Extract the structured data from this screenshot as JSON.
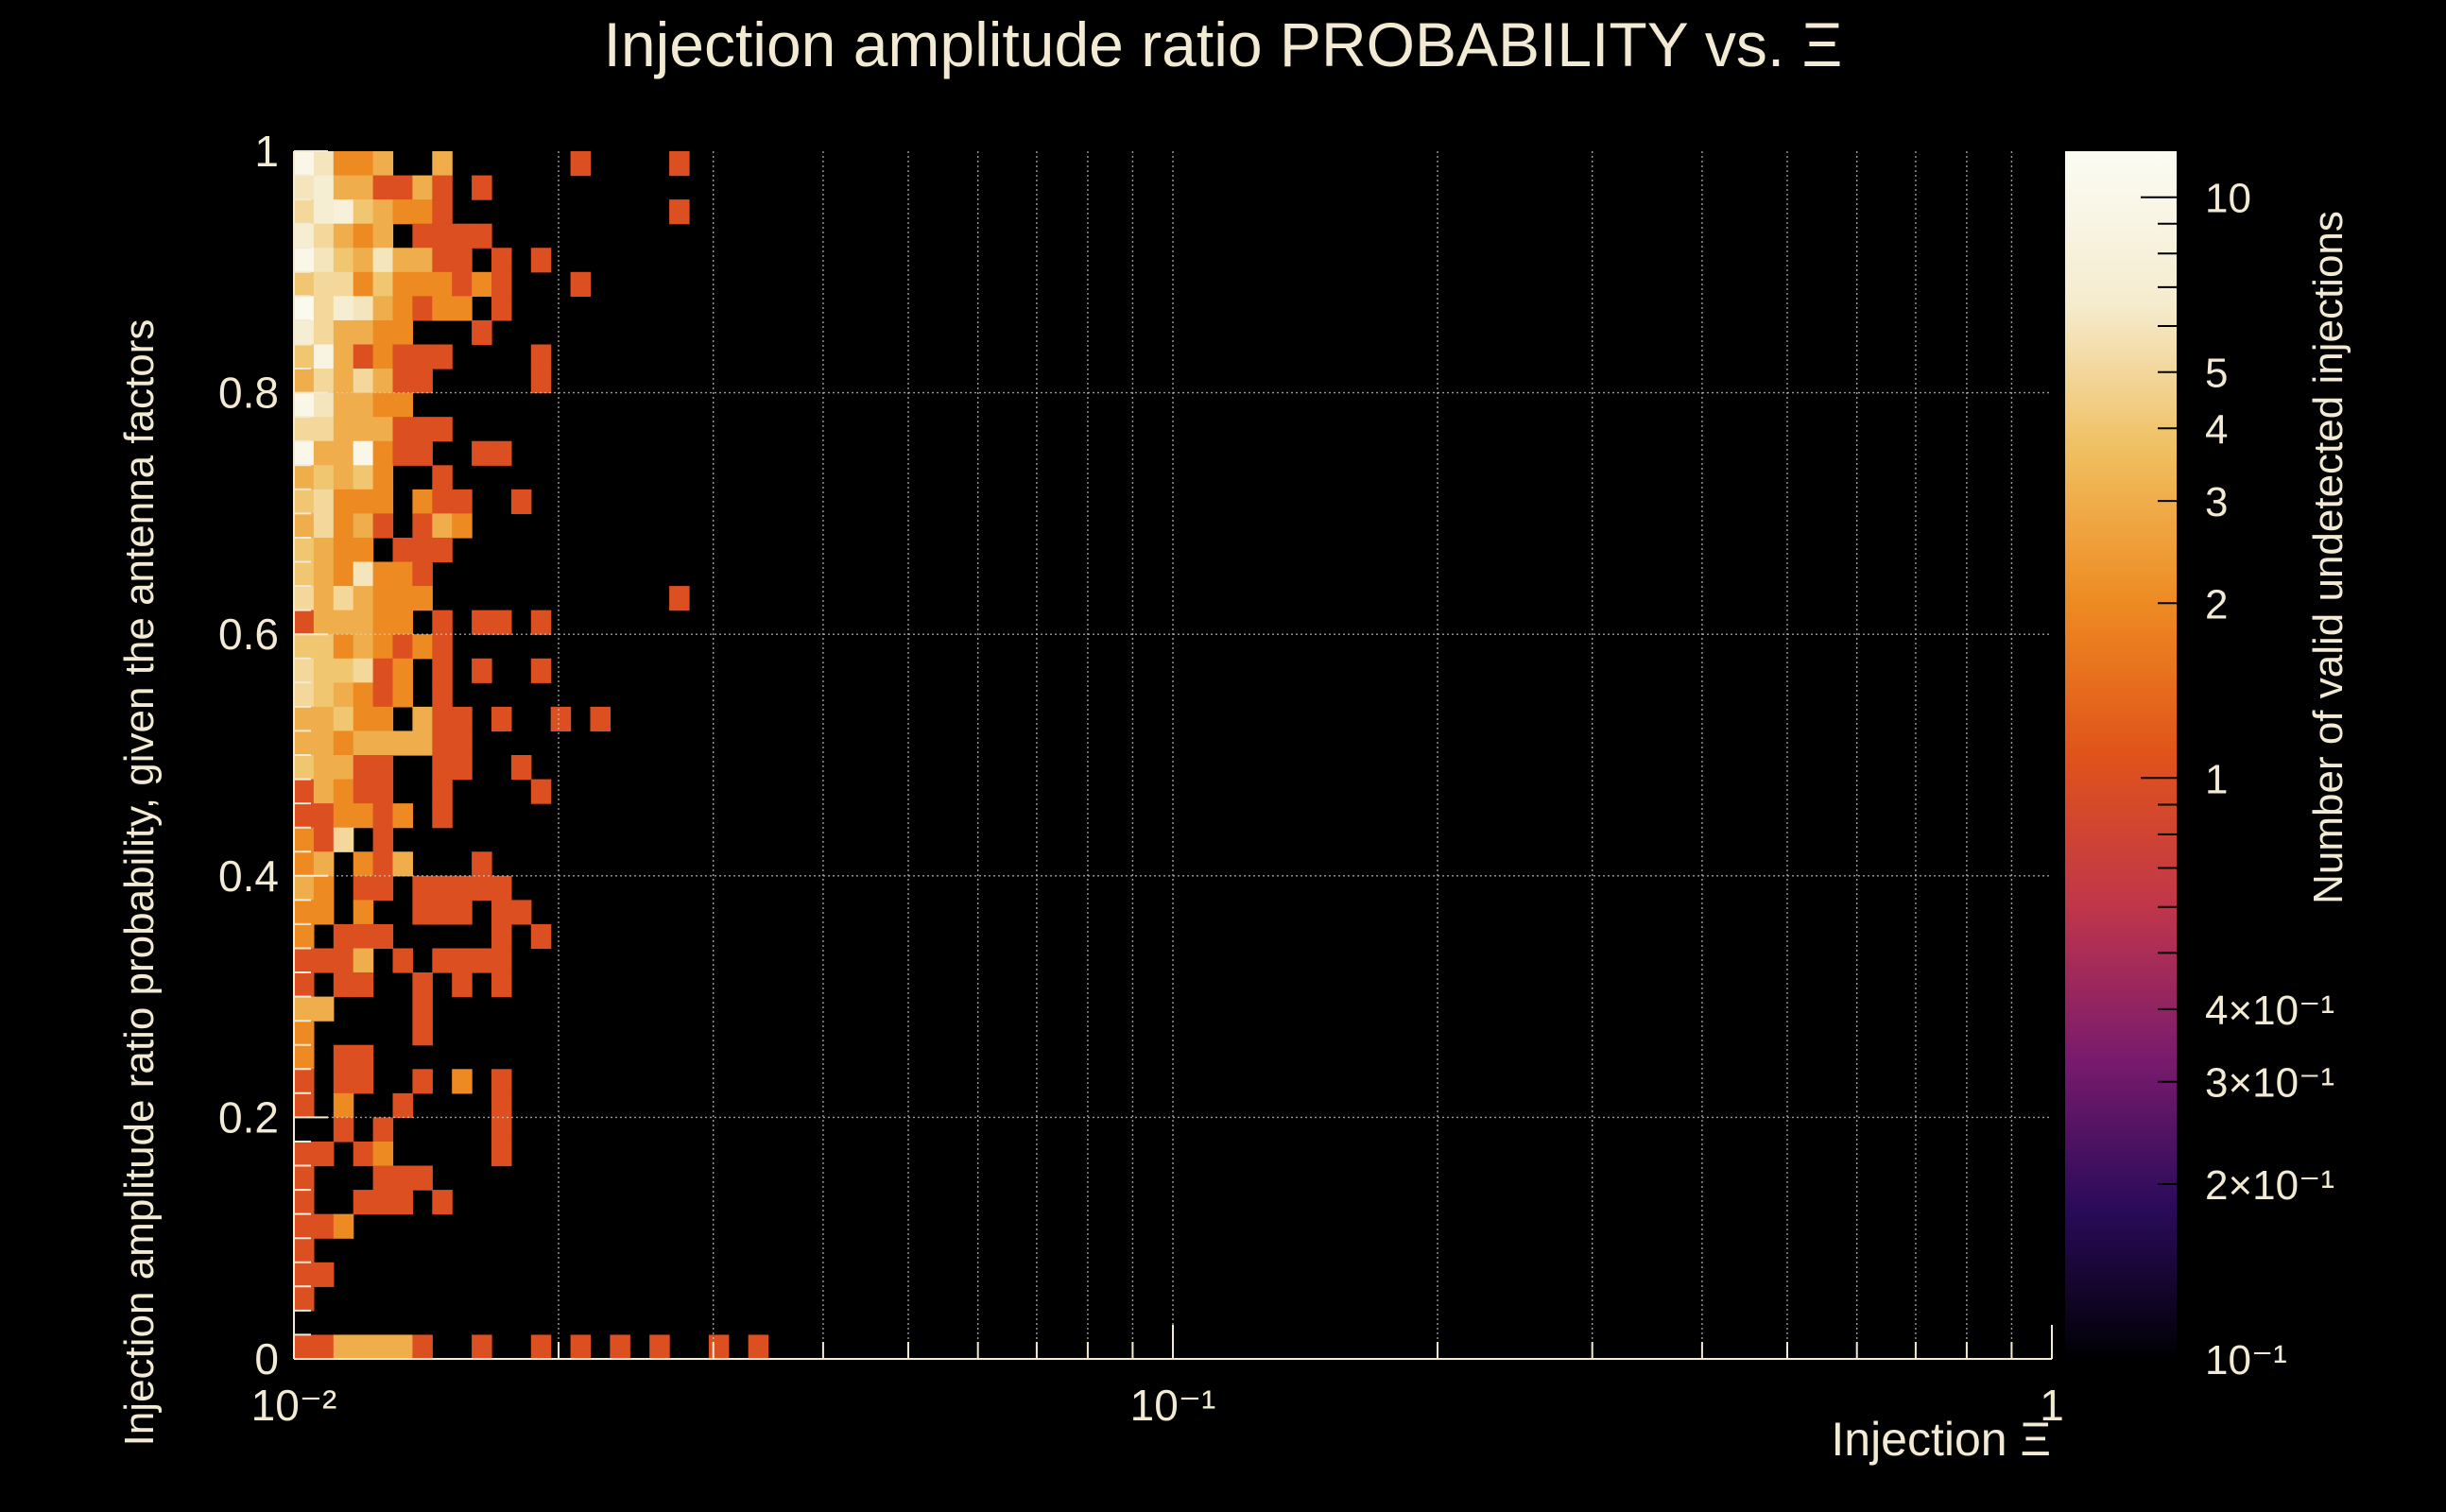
{
  "chart_data": {
    "type": "heatmap",
    "title": "Injection amplitude ratio PROBABILITY vs.  Ξ",
    "xlabel": "Injection Ξ",
    "ylabel": "Injection amplitude ratio probability, given the antenna factors",
    "zlabel": "Number of valid undetected injections",
    "x_scale": "log",
    "xlim": [
      0.01,
      1
    ],
    "ylim": [
      0,
      1
    ],
    "zlim": [
      0.1,
      12
    ],
    "z_scale": "log",
    "x_bins": 89,
    "y_bins": 50,
    "grid": true,
    "xticks": [
      "10⁻²",
      "10⁻¹",
      "1"
    ],
    "yticks": [
      "0",
      "0.2",
      "0.4",
      "0.6",
      "0.8",
      "1"
    ],
    "zticks": [
      "10",
      "5",
      "4",
      "3",
      "2",
      "1",
      "4×10⁻¹",
      "3×10⁻¹",
      "2×10⁻¹",
      "10⁻¹"
    ],
    "ztick_values": [
      10,
      5,
      4,
      3,
      2,
      1,
      0.4,
      0.3,
      0.2,
      0.1
    ],
    "colors": {
      "background": "#000000",
      "text": "#f2ead2",
      "grid": "#cfcfcf",
      "palette": [
        "#000004",
        "#2a0b5a",
        "#7a1b6d",
        "#c0364a",
        "#e0531a",
        "#ee8a22",
        "#f0be5e",
        "#f5eccf",
        "#fcfcf4"
      ]
    },
    "cells": [
      [
        0,
        49,
        10
      ],
      [
        1,
        49,
        6
      ],
      [
        2,
        49,
        2
      ],
      [
        3,
        49,
        2
      ],
      [
        4,
        49,
        3
      ],
      [
        7,
        49,
        3
      ],
      [
        14,
        49,
        1
      ],
      [
        19,
        49,
        1
      ],
      [
        0,
        48,
        6
      ],
      [
        1,
        48,
        7
      ],
      [
        2,
        48,
        3
      ],
      [
        3,
        48,
        3
      ],
      [
        4,
        48,
        1
      ],
      [
        5,
        48,
        1
      ],
      [
        6,
        48,
        3
      ],
      [
        7,
        48,
        1
      ],
      [
        9,
        48,
        1
      ],
      [
        0,
        47,
        5
      ],
      [
        1,
        47,
        7
      ],
      [
        2,
        47,
        8
      ],
      [
        3,
        47,
        4
      ],
      [
        4,
        47,
        3
      ],
      [
        5,
        47,
        2
      ],
      [
        6,
        47,
        2
      ],
      [
        7,
        47,
        1
      ],
      [
        19,
        47,
        1
      ],
      [
        0,
        46,
        7
      ],
      [
        1,
        46,
        5
      ],
      [
        2,
        46,
        3
      ],
      [
        3,
        46,
        2
      ],
      [
        4,
        46,
        3
      ],
      [
        6,
        46,
        1
      ],
      [
        7,
        46,
        1
      ],
      [
        8,
        46,
        1
      ],
      [
        9,
        46,
        1
      ],
      [
        0,
        45,
        10
      ],
      [
        1,
        45,
        6
      ],
      [
        2,
        45,
        4
      ],
      [
        3,
        45,
        3
      ],
      [
        4,
        45,
        6
      ],
      [
        5,
        45,
        3
      ],
      [
        6,
        45,
        3
      ],
      [
        7,
        45,
        1
      ],
      [
        8,
        45,
        1
      ],
      [
        10,
        45,
        1
      ],
      [
        12,
        45,
        1
      ],
      [
        0,
        44,
        4
      ],
      [
        1,
        44,
        5
      ],
      [
        2,
        44,
        5
      ],
      [
        3,
        44,
        2
      ],
      [
        4,
        44,
        4
      ],
      [
        5,
        44,
        2
      ],
      [
        6,
        44,
        2
      ],
      [
        7,
        44,
        2
      ],
      [
        8,
        44,
        1
      ],
      [
        9,
        44,
        2
      ],
      [
        10,
        44,
        1
      ],
      [
        14,
        44,
        1
      ],
      [
        0,
        43,
        11
      ],
      [
        1,
        43,
        5
      ],
      [
        2,
        43,
        7
      ],
      [
        3,
        43,
        6
      ],
      [
        4,
        43,
        3
      ],
      [
        5,
        43,
        2
      ],
      [
        6,
        43,
        1
      ],
      [
        7,
        43,
        2
      ],
      [
        8,
        43,
        2
      ],
      [
        10,
        43,
        1
      ],
      [
        0,
        42,
        7
      ],
      [
        1,
        42,
        5
      ],
      [
        2,
        42,
        3
      ],
      [
        3,
        42,
        3
      ],
      [
        4,
        42,
        2
      ],
      [
        5,
        42,
        2
      ],
      [
        9,
        42,
        1
      ],
      [
        0,
        41,
        4
      ],
      [
        1,
        41,
        9
      ],
      [
        2,
        41,
        3
      ],
      [
        3,
        41,
        1
      ],
      [
        4,
        41,
        2
      ],
      [
        5,
        41,
        1
      ],
      [
        6,
        41,
        1
      ],
      [
        7,
        41,
        1
      ],
      [
        12,
        41,
        1
      ],
      [
        0,
        40,
        3
      ],
      [
        1,
        40,
        5
      ],
      [
        2,
        40,
        3
      ],
      [
        3,
        40,
        5
      ],
      [
        4,
        40,
        3
      ],
      [
        5,
        40,
        1
      ],
      [
        6,
        40,
        1
      ],
      [
        12,
        40,
        1
      ],
      [
        0,
        39,
        10
      ],
      [
        1,
        39,
        6
      ],
      [
        2,
        39,
        3
      ],
      [
        3,
        39,
        3
      ],
      [
        4,
        39,
        2
      ],
      [
        5,
        39,
        2
      ],
      [
        0,
        38,
        5
      ],
      [
        1,
        38,
        5
      ],
      [
        2,
        38,
        3
      ],
      [
        3,
        38,
        3
      ],
      [
        4,
        38,
        3
      ],
      [
        5,
        38,
        1
      ],
      [
        6,
        38,
        1
      ],
      [
        7,
        38,
        1
      ],
      [
        0,
        37,
        10
      ],
      [
        1,
        37,
        3
      ],
      [
        2,
        37,
        3
      ],
      [
        3,
        37,
        10
      ],
      [
        4,
        37,
        2
      ],
      [
        5,
        37,
        1
      ],
      [
        6,
        37,
        1
      ],
      [
        9,
        37,
        1
      ],
      [
        10,
        37,
        1
      ],
      [
        0,
        36,
        3
      ],
      [
        1,
        36,
        4
      ],
      [
        2,
        36,
        3
      ],
      [
        3,
        36,
        4
      ],
      [
        4,
        36,
        2
      ],
      [
        7,
        36,
        1
      ],
      [
        0,
        35,
        4
      ],
      [
        1,
        35,
        5
      ],
      [
        2,
        35,
        2
      ],
      [
        3,
        35,
        2
      ],
      [
        4,
        35,
        2
      ],
      [
        6,
        35,
        2
      ],
      [
        7,
        35,
        1
      ],
      [
        8,
        35,
        1
      ],
      [
        11,
        35,
        1
      ],
      [
        0,
        34,
        3
      ],
      [
        1,
        34,
        5
      ],
      [
        2,
        34,
        2
      ],
      [
        3,
        34,
        3
      ],
      [
        4,
        34,
        1
      ],
      [
        6,
        34,
        1
      ],
      [
        7,
        34,
        3
      ],
      [
        8,
        34,
        2
      ],
      [
        0,
        33,
        4
      ],
      [
        1,
        33,
        3
      ],
      [
        2,
        33,
        2
      ],
      [
        3,
        33,
        2
      ],
      [
        5,
        33,
        1
      ],
      [
        6,
        33,
        1
      ],
      [
        7,
        33,
        1
      ],
      [
        0,
        32,
        4
      ],
      [
        1,
        32,
        3
      ],
      [
        2,
        32,
        2
      ],
      [
        3,
        32,
        6
      ],
      [
        4,
        32,
        2
      ],
      [
        5,
        32,
        2
      ],
      [
        6,
        32,
        1
      ],
      [
        0,
        31,
        5
      ],
      [
        1,
        31,
        3
      ],
      [
        2,
        31,
        5
      ],
      [
        3,
        31,
        3
      ],
      [
        4,
        31,
        2
      ],
      [
        5,
        31,
        2
      ],
      [
        6,
        31,
        2
      ],
      [
        19,
        31,
        1
      ],
      [
        0,
        30,
        1
      ],
      [
        1,
        30,
        3
      ],
      [
        2,
        30,
        3
      ],
      [
        3,
        30,
        3
      ],
      [
        4,
        30,
        2
      ],
      [
        5,
        30,
        2
      ],
      [
        7,
        30,
        1
      ],
      [
        9,
        30,
        1
      ],
      [
        10,
        30,
        1
      ],
      [
        12,
        30,
        1
      ],
      [
        0,
        29,
        4
      ],
      [
        1,
        29,
        4
      ],
      [
        2,
        29,
        2
      ],
      [
        3,
        29,
        3
      ],
      [
        4,
        29,
        2
      ],
      [
        5,
        29,
        1
      ],
      [
        6,
        29,
        2
      ],
      [
        7,
        29,
        1
      ],
      [
        0,
        28,
        5
      ],
      [
        1,
        28,
        4
      ],
      [
        2,
        28,
        4
      ],
      [
        3,
        28,
        5
      ],
      [
        4,
        28,
        1
      ],
      [
        5,
        28,
        2
      ],
      [
        7,
        28,
        1
      ],
      [
        9,
        28,
        1
      ],
      [
        12,
        28,
        1
      ],
      [
        0,
        27,
        5
      ],
      [
        1,
        27,
        4
      ],
      [
        2,
        27,
        3
      ],
      [
        3,
        27,
        2
      ],
      [
        4,
        27,
        1
      ],
      [
        5,
        27,
        2
      ],
      [
        7,
        27,
        1
      ],
      [
        0,
        26,
        3
      ],
      [
        1,
        26,
        3
      ],
      [
        2,
        26,
        4
      ],
      [
        3,
        26,
        2
      ],
      [
        4,
        26,
        2
      ],
      [
        6,
        26,
        3
      ],
      [
        7,
        26,
        1
      ],
      [
        8,
        26,
        1
      ],
      [
        10,
        26,
        1
      ],
      [
        13,
        26,
        1
      ],
      [
        15,
        26,
        1
      ],
      [
        0,
        25,
        3
      ],
      [
        1,
        25,
        3
      ],
      [
        2,
        25,
        2
      ],
      [
        3,
        25,
        3
      ],
      [
        4,
        25,
        3
      ],
      [
        5,
        25,
        3
      ],
      [
        6,
        25,
        3
      ],
      [
        7,
        25,
        1
      ],
      [
        8,
        25,
        1
      ],
      [
        0,
        24,
        4
      ],
      [
        1,
        24,
        3
      ],
      [
        2,
        24,
        3
      ],
      [
        3,
        24,
        1
      ],
      [
        4,
        24,
        1
      ],
      [
        7,
        24,
        1
      ],
      [
        8,
        24,
        1
      ],
      [
        11,
        24,
        1
      ],
      [
        0,
        23,
        1
      ],
      [
        1,
        23,
        3
      ],
      [
        2,
        23,
        2
      ],
      [
        3,
        23,
        1
      ],
      [
        4,
        23,
        1
      ],
      [
        7,
        23,
        1
      ],
      [
        12,
        23,
        1
      ],
      [
        0,
        22,
        1
      ],
      [
        1,
        22,
        1
      ],
      [
        2,
        22,
        2
      ],
      [
        3,
        22,
        2
      ],
      [
        4,
        22,
        1
      ],
      [
        5,
        22,
        2
      ],
      [
        7,
        22,
        1
      ],
      [
        0,
        21,
        2
      ],
      [
        1,
        21,
        1
      ],
      [
        2,
        21,
        5
      ],
      [
        4,
        21,
        1
      ],
      [
        0,
        20,
        2
      ],
      [
        1,
        20,
        3
      ],
      [
        3,
        20,
        2
      ],
      [
        4,
        20,
        1
      ],
      [
        5,
        20,
        3
      ],
      [
        9,
        20,
        1
      ],
      [
        0,
        19,
        3
      ],
      [
        1,
        19,
        2
      ],
      [
        3,
        19,
        1
      ],
      [
        4,
        19,
        1
      ],
      [
        6,
        19,
        1
      ],
      [
        7,
        19,
        1
      ],
      [
        8,
        19,
        1
      ],
      [
        9,
        19,
        1
      ],
      [
        10,
        19,
        1
      ],
      [
        0,
        18,
        2
      ],
      [
        1,
        18,
        2
      ],
      [
        3,
        18,
        2
      ],
      [
        6,
        18,
        1
      ],
      [
        7,
        18,
        1
      ],
      [
        8,
        18,
        1
      ],
      [
        10,
        18,
        1
      ],
      [
        11,
        18,
        1
      ],
      [
        0,
        17,
        2
      ],
      [
        2,
        17,
        1
      ],
      [
        3,
        17,
        1
      ],
      [
        4,
        17,
        1
      ],
      [
        10,
        17,
        1
      ],
      [
        12,
        17,
        1
      ],
      [
        0,
        16,
        1
      ],
      [
        1,
        16,
        1
      ],
      [
        2,
        16,
        1
      ],
      [
        3,
        16,
        3
      ],
      [
        5,
        16,
        1
      ],
      [
        7,
        16,
        1
      ],
      [
        8,
        16,
        1
      ],
      [
        9,
        16,
        1
      ],
      [
        10,
        16,
        1
      ],
      [
        0,
        15,
        1
      ],
      [
        2,
        15,
        1
      ],
      [
        3,
        15,
        1
      ],
      [
        6,
        15,
        1
      ],
      [
        8,
        15,
        1
      ],
      [
        10,
        15,
        1
      ],
      [
        0,
        14,
        3
      ],
      [
        1,
        14,
        3
      ],
      [
        6,
        14,
        1
      ],
      [
        0,
        13,
        2
      ],
      [
        6,
        13,
        1
      ],
      [
        0,
        12,
        2
      ],
      [
        2,
        12,
        1
      ],
      [
        3,
        12,
        1
      ],
      [
        0,
        11,
        1
      ],
      [
        2,
        11,
        1
      ],
      [
        3,
        11,
        1
      ],
      [
        6,
        11,
        1
      ],
      [
        8,
        11,
        2
      ],
      [
        10,
        11,
        1
      ],
      [
        0,
        10,
        1
      ],
      [
        2,
        10,
        2
      ],
      [
        5,
        10,
        1
      ],
      [
        10,
        10,
        1
      ],
      [
        2,
        9,
        1
      ],
      [
        4,
        9,
        1
      ],
      [
        10,
        9,
        1
      ],
      [
        0,
        8,
        1
      ],
      [
        1,
        8,
        1
      ],
      [
        3,
        8,
        1
      ],
      [
        4,
        8,
        2
      ],
      [
        10,
        8,
        1
      ],
      [
        0,
        7,
        1
      ],
      [
        4,
        7,
        1
      ],
      [
        5,
        7,
        1
      ],
      [
        6,
        7,
        1
      ],
      [
        0,
        6,
        1
      ],
      [
        3,
        6,
        1
      ],
      [
        4,
        6,
        1
      ],
      [
        5,
        6,
        1
      ],
      [
        7,
        6,
        1
      ],
      [
        0,
        5,
        1
      ],
      [
        1,
        5,
        1
      ],
      [
        2,
        5,
        2
      ],
      [
        0,
        4,
        1
      ],
      [
        0,
        3,
        1
      ],
      [
        1,
        3,
        1
      ],
      [
        0,
        2,
        1
      ],
      [
        0,
        0,
        1
      ],
      [
        1,
        0,
        1
      ],
      [
        2,
        0,
        3
      ],
      [
        3,
        0,
        3
      ],
      [
        4,
        0,
        3
      ],
      [
        5,
        0,
        3
      ],
      [
        6,
        0,
        1
      ],
      [
        9,
        0,
        1
      ],
      [
        12,
        0,
        1
      ],
      [
        14,
        0,
        1
      ],
      [
        16,
        0,
        1
      ],
      [
        18,
        0,
        1
      ],
      [
        21,
        0,
        1
      ],
      [
        23,
        0,
        1
      ]
    ]
  }
}
